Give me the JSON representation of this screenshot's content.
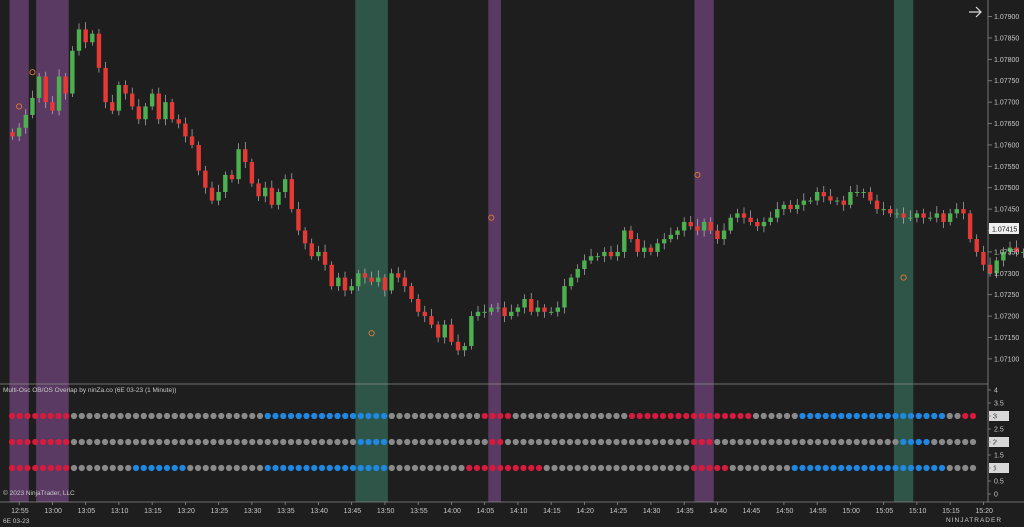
{
  "panel_title": "Multi-Osc OB/OS Overlap by ninZa.co (6E 03-23 (1 Minute))",
  "copyright": "© 2023 NinjaTrader, LLC",
  "instrument_tag": "6E 03-23",
  "brand": "NINJATRADER",
  "current_price_label": "1.07415",
  "colors": {
    "background": "#1e1e1e",
    "up_candle": "#4caf50",
    "down_candle": "#e53935",
    "purple_band": "#5a3a62",
    "green_band": "#2f5548",
    "dot_red": "#d81b3c",
    "dot_blue": "#1e88e5",
    "dot_gray": "#8a8a8a",
    "signal_marker": "#e07a36"
  },
  "chart_data": [
    {
      "type": "candlestick",
      "timeframe": "1 Minute",
      "instrument": "6E 03-23",
      "x_tick_labels": [
        "12:55",
        "13:00",
        "13:05",
        "13:10",
        "13:15",
        "13:20",
        "13:25",
        "13:30",
        "13:35",
        "13:40",
        "13:45",
        "13:50",
        "13:55",
        "14:00",
        "14:05",
        "14:10",
        "14:15",
        "14:20",
        "14:25",
        "14:30",
        "14:35",
        "14:40",
        "14:45",
        "14:50",
        "14:55",
        "15:00",
        "15:05",
        "15:10",
        "15:15",
        "15:20"
      ],
      "y_tick_labels": [
        "1.07900",
        "1.07850",
        "1.07800",
        "1.07750",
        "1.07700",
        "1.07650",
        "1.07600",
        "1.07550",
        "1.07500",
        "1.07450",
        "1.07400",
        "1.07350",
        "1.07300",
        "1.07250",
        "1.07200",
        "1.07150",
        "1.07100"
      ],
      "ylim": [
        1.0706,
        1.0792
      ],
      "closes": [
        1.0762,
        1.0764,
        1.0767,
        1.0771,
        1.0776,
        1.077,
        1.0768,
        1.0776,
        1.0772,
        1.0782,
        1.0787,
        1.0784,
        1.0786,
        1.0778,
        1.077,
        1.0768,
        1.0774,
        1.0772,
        1.0769,
        1.0766,
        1.0769,
        1.0772,
        1.0766,
        1.077,
        1.0766,
        1.0765,
        1.0762,
        1.076,
        1.0754,
        1.075,
        1.0747,
        1.0749,
        1.0753,
        1.0752,
        1.0759,
        1.0756,
        1.0751,
        1.0748,
        1.075,
        1.0746,
        1.0749,
        1.0752,
        1.0745,
        1.074,
        1.0737,
        1.0734,
        1.0735,
        1.0732,
        1.0727,
        1.0729,
        1.0726,
        1.0727,
        1.073,
        1.0729,
        1.0728,
        1.0729,
        1.0726,
        1.073,
        1.0729,
        1.0727,
        1.0724,
        1.0721,
        1.072,
        1.0718,
        1.0715,
        1.0718,
        1.0714,
        1.0712,
        1.0713,
        1.072,
        1.0721,
        1.0721,
        1.0722,
        1.0722,
        1.072,
        1.0721,
        1.0722,
        1.0724,
        1.0721,
        1.0722,
        1.0721,
        1.0721,
        1.0722,
        1.0727,
        1.0729,
        1.0731,
        1.0733,
        1.0734,
        1.0734,
        1.0735,
        1.0734,
        1.0735,
        1.074,
        1.0738,
        1.0735,
        1.0736,
        1.0735,
        1.0737,
        1.0738,
        1.0739,
        1.074,
        1.0742,
        1.0741,
        1.074,
        1.0742,
        1.074,
        1.0738,
        1.074,
        1.0743,
        1.0744,
        1.0743,
        1.0742,
        1.0741,
        1.0742,
        1.0743,
        1.0745,
        1.0746,
        1.0745,
        1.0746,
        1.0747,
        1.0747,
        1.0749,
        1.0748,
        1.0747,
        1.0747,
        1.0746,
        1.0749,
        1.0749,
        1.0749,
        1.0747,
        1.0745,
        1.0745,
        1.0744,
        1.0744,
        1.0743,
        1.0743,
        1.0744,
        1.0743,
        1.0743,
        1.0744,
        1.0742,
        1.0744,
        1.0745,
        1.0744,
        1.0738,
        1.0735,
        1.0732,
        1.073,
        1.0733,
        1.0735,
        1.0736,
        1.0735,
        1.0735,
        1.0737,
        1.0739,
        1.074,
        1.0741,
        1.074,
        1.0742
      ],
      "oscillator_rows": [
        "3",
        "2",
        "1"
      ],
      "oscillator_y_tick_labels": [
        "4",
        "3.5",
        "3",
        "2.5",
        "2",
        "1.5",
        "1",
        "0.5",
        "0"
      ],
      "markers": [
        {
          "time": "12:55",
          "price": 1.0769
        },
        {
          "time": "12:57",
          "price": 1.0777
        },
        {
          "time": "13:48",
          "price": 1.0716
        },
        {
          "time": "14:06",
          "price": 1.0743
        },
        {
          "time": "14:37",
          "price": 1.0753
        },
        {
          "time": "15:08",
          "price": 1.0729
        }
      ]
    }
  ]
}
